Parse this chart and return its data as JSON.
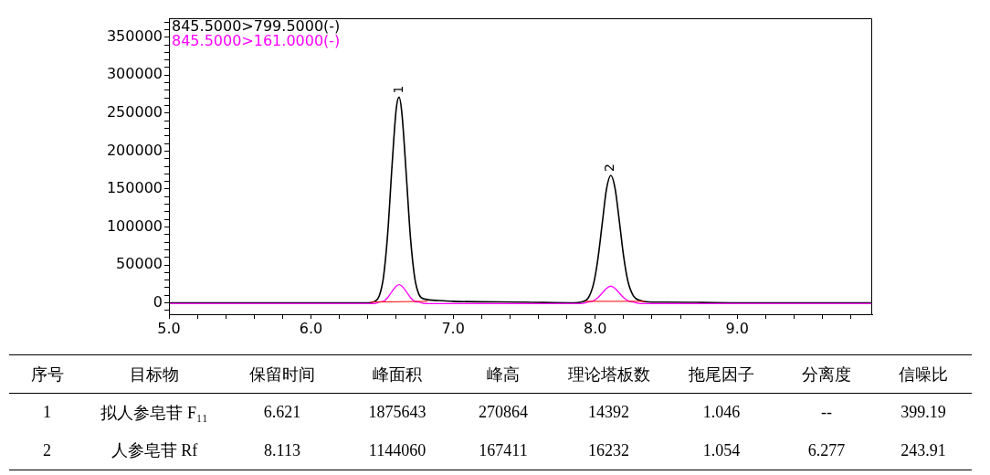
{
  "chart_data": [
    {
      "type": "line",
      "legend": "top left",
      "marker": "none",
      "x": [
        5.0,
        6.0,
        6.4,
        6.45,
        6.48,
        6.51,
        6.54,
        6.57,
        6.6,
        6.62,
        6.64,
        6.67,
        6.7,
        6.73,
        6.76,
        6.8,
        6.9,
        7.0,
        7.5,
        7.85,
        7.9,
        7.95,
        7.99,
        8.02,
        8.05,
        8.08,
        8.11,
        8.14,
        8.17,
        8.2,
        8.23,
        8.27,
        8.32,
        8.4,
        8.5,
        9.0,
        9.95
      ],
      "series": [
        {
          "name": "845.5000>799.5000(-)",
          "color": "#000000",
          "values": [
            0,
            0,
            0,
            2000,
            9000,
            34000,
            92000,
            180000,
            256000,
            271000,
            249000,
            170000,
            86000,
            33000,
            11000,
            5000,
            3000,
            2000,
            1000,
            0,
            1000,
            6000,
            26000,
            59000,
            105000,
            150000,
            168000,
            151000,
            108000,
            62000,
            29000,
            9000,
            3000,
            1000,
            1000,
            0,
            0
          ]
        },
        {
          "name": "845.5000>161.0000(-)",
          "color": "#ff00ff",
          "values": [
            -1000,
            -1000,
            -1000,
            -1000,
            1000,
            2000,
            7000,
            15000,
            22000,
            24000,
            22000,
            15000,
            7000,
            2000,
            1000,
            -1000,
            -1000,
            -1000,
            -1000,
            -1000,
            -1000,
            1000,
            3000,
            7000,
            13000,
            19000,
            22000,
            19000,
            13000,
            7000,
            3000,
            1000,
            -1000,
            -1000,
            -1000,
            -1000,
            -1000
          ]
        },
        {
          "color": "#ff0000",
          "x": [
            6.42,
            6.82,
            7.4,
            7.93,
            8.35
          ],
          "values": [
            1000,
            2000,
            null,
            2000,
            2000
          ]
        }
      ],
      "xlim": [
        5.0,
        9.95
      ],
      "xticks": [
        {
          "value": 5.0,
          "label": "5.0"
        },
        {
          "value": 5.2,
          "label": null
        },
        {
          "value": 5.4,
          "label": null
        },
        {
          "value": 5.6,
          "label": null
        },
        {
          "value": 5.8,
          "label": null
        },
        {
          "value": 6.0,
          "label": "6.0"
        },
        {
          "value": 6.2,
          "label": null
        },
        {
          "value": 6.4,
          "label": null
        },
        {
          "value": 6.6,
          "label": null
        },
        {
          "value": 6.8,
          "label": null
        },
        {
          "value": 7.0,
          "label": "7.0"
        },
        {
          "value": 7.2,
          "label": null
        },
        {
          "value": 7.4,
          "label": null
        },
        {
          "value": 7.6,
          "label": null
        },
        {
          "value": 7.8,
          "label": null
        },
        {
          "value": 8.0,
          "label": "8.0"
        },
        {
          "value": 8.2,
          "label": null
        },
        {
          "value": 8.4,
          "label": null
        },
        {
          "value": 8.6,
          "label": null
        },
        {
          "value": 8.8,
          "label": null
        },
        {
          "value": 9.0,
          "label": "9.0"
        },
        {
          "value": 9.2,
          "label": null
        },
        {
          "value": 9.4,
          "label": null
        },
        {
          "value": 9.6,
          "label": null
        },
        {
          "value": 9.8,
          "label": null
        }
      ],
      "ylim": [
        -15000,
        375000
      ],
      "yticks": [
        {
          "value": -10000,
          "label": null
        },
        0,
        {
          "value": 10000,
          "label": null
        },
        {
          "value": 20000,
          "label": null
        },
        {
          "value": 30000,
          "label": null
        },
        {
          "value": 40000,
          "label": null
        },
        50000,
        {
          "value": 60000,
          "label": null
        },
        {
          "value": 70000,
          "label": null
        },
        {
          "value": 80000,
          "label": null
        },
        {
          "value": 90000,
          "label": null
        },
        100000,
        {
          "value": 110000,
          "label": null
        },
        {
          "value": 120000,
          "label": null
        },
        {
          "value": 130000,
          "label": null
        },
        {
          "value": 140000,
          "label": null
        },
        150000,
        {
          "value": 160000,
          "label": null
        },
        {
          "value": 170000,
          "label": null
        },
        {
          "value": 180000,
          "label": null
        },
        {
          "value": 190000,
          "label": null
        },
        200000,
        {
          "value": 210000,
          "label": null
        },
        {
          "value": 220000,
          "label": null
        },
        {
          "value": 230000,
          "label": null
        },
        {
          "value": 240000,
          "label": null
        },
        250000,
        {
          "value": 260000,
          "label": null
        },
        {
          "value": 270000,
          "label": null
        },
        {
          "value": 280000,
          "label": null
        },
        {
          "value": 290000,
          "label": null
        },
        300000,
        {
          "value": 310000,
          "label": null
        },
        {
          "value": 320000,
          "label": null
        },
        {
          "value": 330000,
          "label": null
        },
        {
          "value": 340000,
          "label": null
        },
        350000,
        {
          "value": 360000,
          "label": null
        },
        {
          "value": 370000,
          "label": null
        }
      ],
      "annotations": [
        {
          "text": "1",
          "x": 6.62,
          "y": 271000
        },
        {
          "text": "2",
          "x": 8.11,
          "y": 168000
        }
      ]
    },
    {
      "type": "other",
      "categories": [
        "序号",
        "目标物",
        "保留时间",
        "峰面积",
        "峰高",
        "理论塔板数",
        "拖尾因子",
        "分离度",
        "信噪比"
      ],
      "cell_labels": [
        [
          "1",
          "拟人参皂苷 F₁₁",
          "6.621",
          "1875643",
          "270864",
          "14392",
          "1.046",
          "--",
          "399.19"
        ],
        [
          "2",
          "人参皂苷 Rf",
          "8.113",
          "1144060",
          "167411",
          "16232",
          "1.054",
          "6.277",
          "243.91"
        ]
      ]
    }
  ]
}
